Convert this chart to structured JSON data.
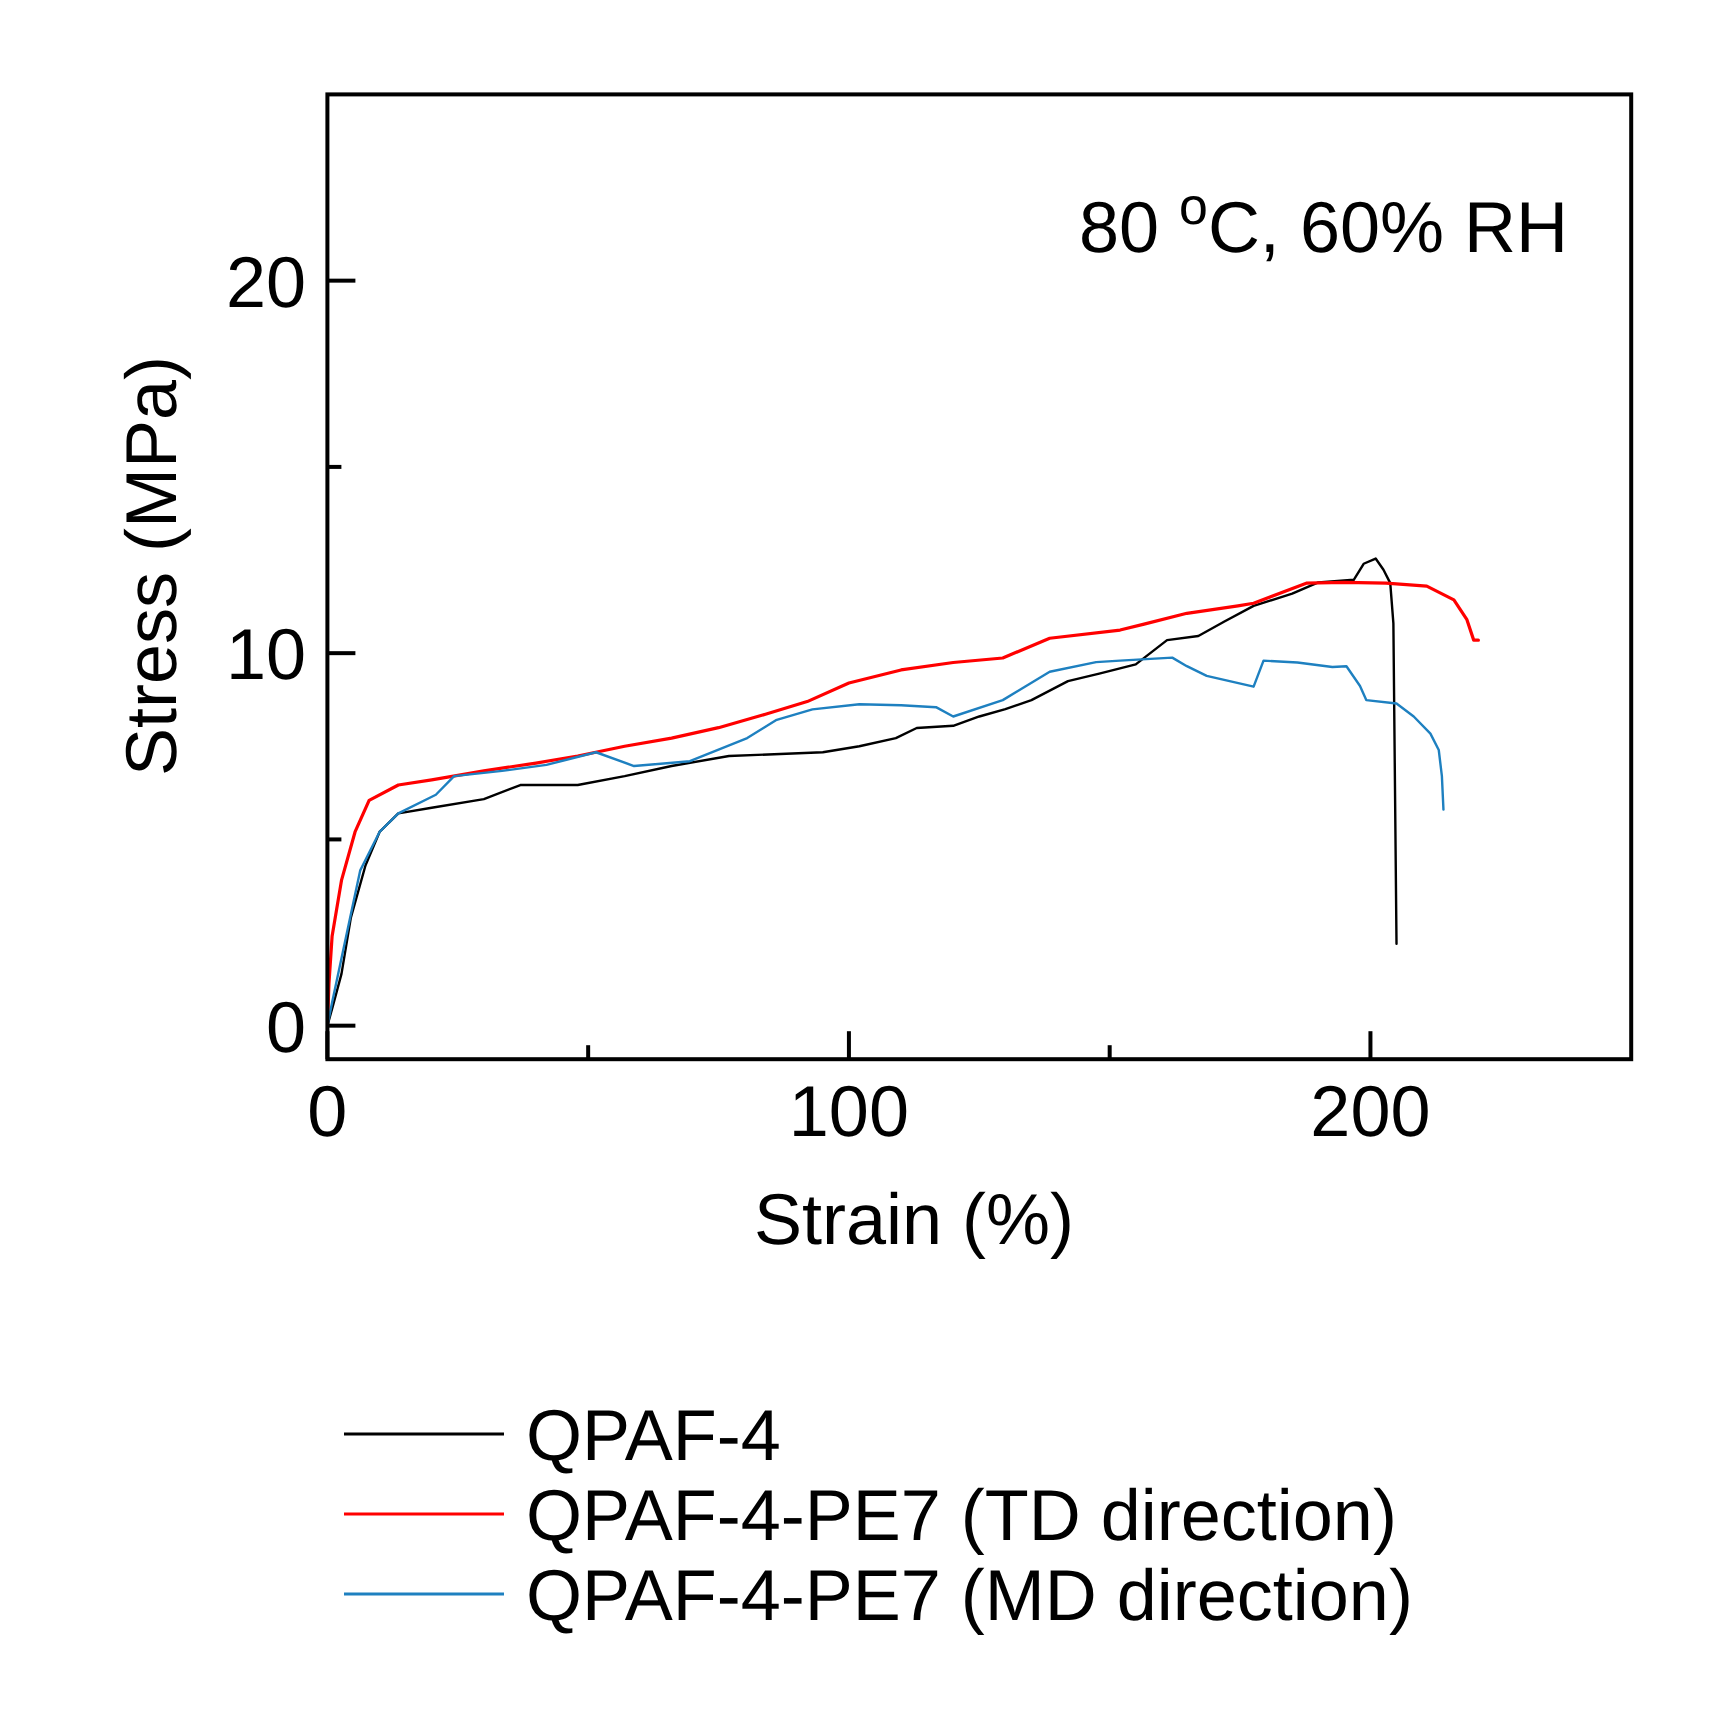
{
  "chart_data": {
    "type": "line",
    "xlabel": "Strain (%)",
    "ylabel": "Stress (MPa)",
    "annotations": [
      "80 $^{o}$C, 60% RH"
    ],
    "xlim": [
      0,
      250
    ],
    "ylim": [
      -0.9,
      25
    ],
    "xticks": [
      0,
      {
        "value": 50,
        "label": null
      },
      100,
      {
        "value": 150,
        "label": null
      },
      200
    ],
    "yticks": [
      0,
      {
        "value": 5,
        "label": null
      },
      10,
      {
        "value": 15,
        "label": null
      },
      20
    ],
    "legend": "bottom",
    "series": [
      {
        "name": "QPAF-4",
        "color": "#000000",
        "x": [
          0,
          1,
          2.7,
          4.5,
          7.3,
          10,
          13.6,
          20,
          30,
          37,
          48,
          57,
          66,
          77,
          88,
          95,
          102,
          109,
          113,
          120,
          125,
          130,
          135,
          142,
          148,
          155,
          161,
          167,
          172,
          177.6,
          185,
          190,
          196.8,
          198.7,
          201,
          202.5,
          203.8,
          204.4,
          205
        ],
        "values": [
          0,
          0.5,
          1.39,
          2.9,
          4.3,
          5.2,
          5.7,
          5.85,
          6.08,
          6.46,
          6.46,
          6.7,
          6.97,
          7.24,
          7.3,
          7.34,
          7.5,
          7.72,
          7.99,
          8.05,
          8.3,
          8.5,
          8.74,
          9.25,
          9.45,
          9.7,
          10.35,
          10.46,
          10.85,
          11.27,
          11.6,
          11.9,
          11.97,
          12.4,
          12.54,
          12.24,
          11.88,
          10.8,
          2.2
        ]
      },
      {
        "name": "QPAF-4-PE7 (TD direction)",
        "color": "#ff0000",
        "x": [
          0,
          0.3,
          0.9,
          2.7,
          5.3,
          8,
          13.6,
          20,
          30,
          40,
          48,
          57,
          66,
          75,
          84,
          92,
          100,
          110,
          120,
          129.5,
          138.5,
          152,
          156.6,
          164.8,
          174.6,
          177.6,
          187.7,
          195,
          203,
          210.8,
          216,
          218.5,
          219.8,
          220.7
        ],
        "values": [
          0,
          1.13,
          2.4,
          3.9,
          5.2,
          6.05,
          6.46,
          6.6,
          6.84,
          7.05,
          7.24,
          7.5,
          7.72,
          8,
          8.36,
          8.7,
          9.2,
          9.55,
          9.75,
          9.87,
          10.4,
          10.62,
          10.78,
          11.07,
          11.27,
          11.34,
          11.88,
          11.9,
          11.88,
          11.8,
          11.43,
          10.9,
          10.35,
          10.35
        ]
      },
      {
        "name": "QPAF-4-PE7 (MD direction)",
        "color": "#1e80c0",
        "x": [
          0,
          0.9,
          3.6,
          6.3,
          10,
          13.6,
          20.8,
          24.3,
          33.5,
          42,
          51.5,
          58.8,
          69.5,
          80.5,
          86,
          93,
          102,
          110,
          116.7,
          120,
          129.5,
          138.5,
          147.4,
          152,
          162,
          164.8,
          168.6,
          177.6,
          179.5,
          186,
          192.7,
          195.4,
          198,
          199.2,
          205,
          208.3,
          211.5,
          213.1,
          213.7,
          214
        ],
        "values": [
          0,
          0.62,
          2.4,
          4.17,
          5.2,
          5.7,
          6.2,
          6.7,
          6.84,
          7,
          7.34,
          6.97,
          7.1,
          7.72,
          8.2,
          8.49,
          8.63,
          8.6,
          8.55,
          8.3,
          8.74,
          9.5,
          9.76,
          9.8,
          9.88,
          9.65,
          9.39,
          9.1,
          9.8,
          9.75,
          9.63,
          9.65,
          9.12,
          8.74,
          8.65,
          8.3,
          7.84,
          7.4,
          6.7,
          5.8
        ]
      }
    ]
  }
}
